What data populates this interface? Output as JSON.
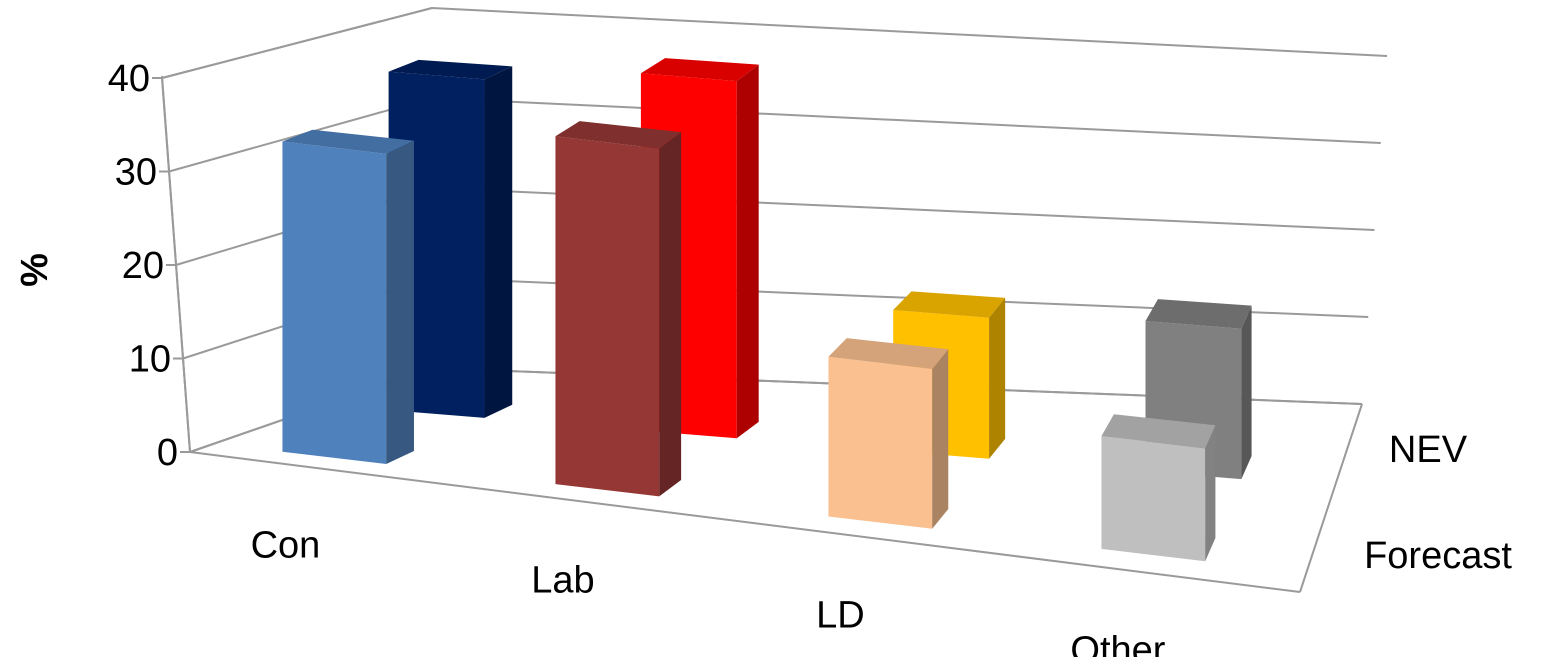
{
  "chart_data": {
    "type": "bar",
    "subtype": "3d-clustered-depth",
    "title": "",
    "xlabel": "",
    "ylabel": "%",
    "ylim": [
      0,
      40
    ],
    "yticks": [
      0,
      10,
      20,
      30,
      40
    ],
    "categories": [
      "Con",
      "Lab",
      "LD",
      "Other"
    ],
    "grid": true,
    "legend": "none",
    "series": [
      {
        "name": "Forecast",
        "values": [
          33,
          37,
          17,
          12
        ],
        "colors": [
          "#4f81bd",
          "#953735",
          "#fac090",
          "#bfbfbf"
        ]
      },
      {
        "name": "NEV",
        "values": [
          36,
          38,
          15,
          16
        ],
        "colors": [
          "#002060",
          "#ff0000",
          "#ffc000",
          "#808080"
        ]
      }
    ]
  }
}
